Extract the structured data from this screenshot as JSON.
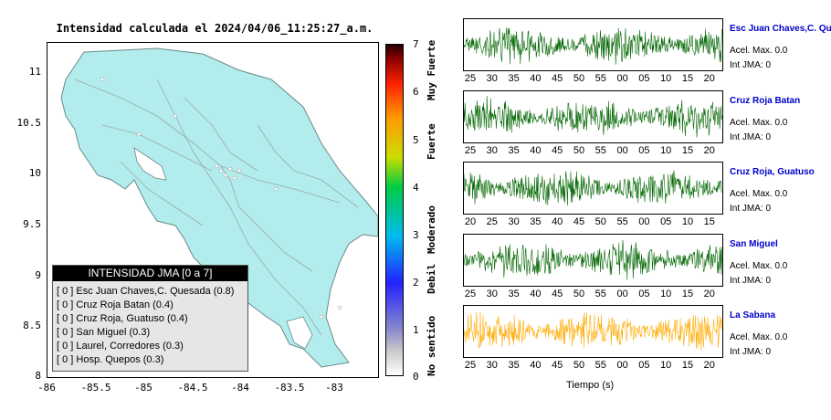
{
  "map": {
    "title": "Intensidad calculada el 2024/04/06_11:25:27_a.m.",
    "lat_ticks": [
      "11",
      "10.5",
      "10",
      "9.5",
      "9",
      "8.5",
      "8"
    ],
    "lon_ticks": [
      "-86",
      "-85.5",
      "-85",
      "-84.5",
      "-84",
      "-83.5",
      "-83"
    ],
    "land_color": "#b3ecec",
    "water_color": "#ffffff"
  },
  "colorbar": {
    "ticks": [
      "7",
      "6",
      "5",
      "4",
      "3",
      "2",
      "1",
      "0"
    ],
    "labels": [
      "Muy Fuerte",
      "Fuerte",
      "Moderado",
      "Debil",
      "No sentido"
    ]
  },
  "legend": {
    "title": "INTENSIDAD JMA [0 a 7]",
    "items": [
      "[ 0 ]  Esc Juan Chaves,C. Quesada (0.8)",
      "[ 0 ]  Cruz Roja Batan (0.4)",
      "[ 0 ]  Cruz Roja, Guatuso (0.4)",
      "[ 0 ]  San Miguel (0.3)",
      "[ 0 ]  Laurel, Corredores (0.3)",
      "[ 0 ]  Hosp. Quepos (0.3)"
    ]
  },
  "stations": [
    {
      "name": "Esc Juan Chaves,C. Qu",
      "accel": "Acel. Max. 0.0",
      "jma": "Int JMA: 0",
      "color": "#006600",
      "ticks": [
        "25",
        "30",
        "35",
        "40",
        "45",
        "50",
        "55",
        "00",
        "05",
        "10",
        "15",
        "20"
      ]
    },
    {
      "name": "Cruz Roja Batan",
      "accel": "Acel. Max. 0.0",
      "jma": "Int JMA: 0",
      "color": "#006600",
      "ticks": [
        "25",
        "30",
        "35",
        "40",
        "45",
        "50",
        "55",
        "00",
        "05",
        "10",
        "15",
        "20"
      ]
    },
    {
      "name": "Cruz Roja, Guatuso",
      "accel": "Acel. Max. 0.0",
      "jma": "Int JMA: 0",
      "color": "#006600",
      "ticks": [
        "20",
        "25",
        "30",
        "35",
        "40",
        "45",
        "50",
        "55",
        "00",
        "05",
        "10",
        "15"
      ]
    },
    {
      "name": "San Miguel",
      "accel": "Acel. Max. 0.0",
      "jma": "Int JMA: 0",
      "color": "#006600",
      "ticks": [
        "25",
        "30",
        "35",
        "40",
        "45",
        "50",
        "55",
        "00",
        "05",
        "10",
        "15",
        "20"
      ]
    },
    {
      "name": "La Sabana",
      "accel": "Acel. Max. 0.0",
      "jma": "Int JMA: 0",
      "color": "#ffaa00",
      "ticks": [
        "25",
        "30",
        "35",
        "40",
        "45",
        "50",
        "55",
        "00",
        "05",
        "10",
        "15",
        "20"
      ]
    }
  ],
  "time_axis_label": "Tiempo (s)"
}
